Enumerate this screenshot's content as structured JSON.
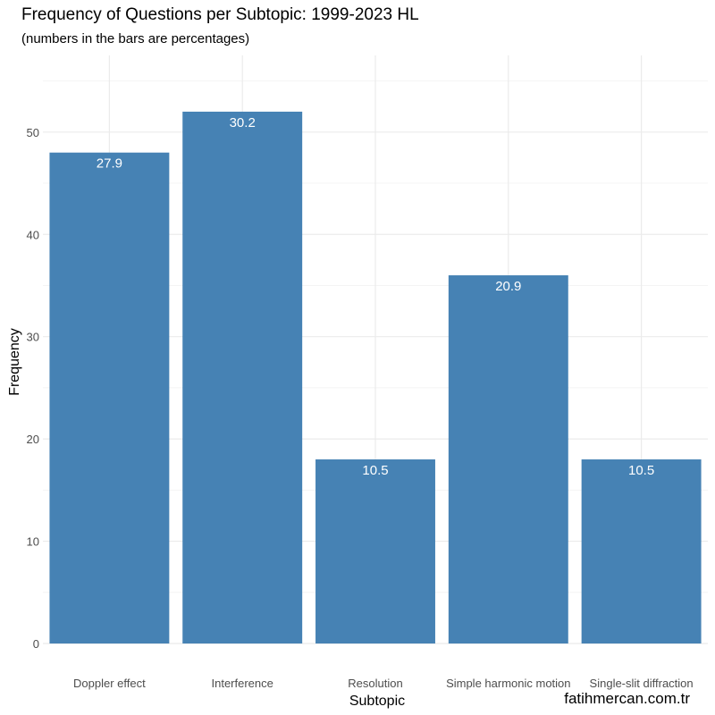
{
  "credit": "fatihmercan.com.tr",
  "chart_data": {
    "type": "bar",
    "title": "Frequency of Questions per Subtopic: 1999-2023 HL",
    "subtitle": "(numbers in the bars are percentages)",
    "xlabel": "Subtopic",
    "ylabel": "Frequency",
    "categories": [
      "Doppler effect",
      "Interference",
      "Resolution",
      "Simple harmonic motion",
      "Single-slit diffraction"
    ],
    "values": [
      48,
      52,
      18,
      36,
      18
    ],
    "bar_labels": [
      "27.9",
      "30.2",
      "10.5",
      "20.9",
      "10.5"
    ],
    "ylim": [
      0,
      57.5
    ],
    "yticks": [
      0,
      10,
      20,
      30,
      40,
      50
    ],
    "grid": true,
    "legend": "none",
    "bar_color": "#4682b4",
    "grid_color": "#ebebeb",
    "minor_grid_color": "#f4f4f4"
  }
}
